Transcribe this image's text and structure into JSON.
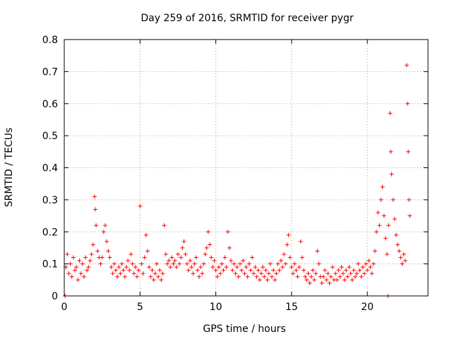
{
  "chart_data": {
    "type": "scatter",
    "title": "Day 259 of 2016, SRMTID for receiver pygr",
    "xlabel": "GPS time / hours",
    "ylabel": "SRMTID / TECUs",
    "xlim": [
      0,
      24
    ],
    "ylim": [
      0,
      0.8
    ],
    "xticks": [
      0,
      5,
      10,
      15,
      20
    ],
    "xtick_labels": [
      "0",
      "5",
      "10",
      "15",
      "20"
    ],
    "yticks": [
      0,
      0.1,
      0.2,
      0.3,
      0.4,
      0.5,
      0.6,
      0.7,
      0.8
    ],
    "ytick_labels": [
      "0",
      "0.1",
      "0.2",
      "0.3",
      "0.4",
      "0.5",
      "0.6",
      "0.7",
      "0.8"
    ],
    "grid": true,
    "marker": "+",
    "color": "#ff0000",
    "series": [
      {
        "name": "SRMTID",
        "points": [
          [
            0.05,
            0.0
          ],
          [
            0.1,
            0.09
          ],
          [
            0.2,
            0.13
          ],
          [
            0.3,
            0.07
          ],
          [
            0.4,
            0.1
          ],
          [
            0.5,
            0.06
          ],
          [
            0.6,
            0.12
          ],
          [
            0.7,
            0.08
          ],
          [
            0.8,
            0.09
          ],
          [
            0.9,
            0.05
          ],
          [
            1.0,
            0.11
          ],
          [
            1.1,
            0.07
          ],
          [
            1.2,
            0.1
          ],
          [
            1.3,
            0.06
          ],
          [
            1.4,
            0.12
          ],
          [
            1.5,
            0.08
          ],
          [
            1.6,
            0.09
          ],
          [
            1.7,
            0.11
          ],
          [
            1.8,
            0.13
          ],
          [
            1.9,
            0.16
          ],
          [
            2.0,
            0.31
          ],
          [
            2.05,
            0.27
          ],
          [
            2.1,
            0.22
          ],
          [
            2.2,
            0.14
          ],
          [
            2.3,
            0.12
          ],
          [
            2.4,
            0.1
          ],
          [
            2.5,
            0.12
          ],
          [
            2.6,
            0.2
          ],
          [
            2.7,
            0.22
          ],
          [
            2.8,
            0.17
          ],
          [
            2.9,
            0.14
          ],
          [
            3.0,
            0.12
          ],
          [
            3.1,
            0.09
          ],
          [
            3.2,
            0.07
          ],
          [
            3.3,
            0.1
          ],
          [
            3.4,
            0.08
          ],
          [
            3.5,
            0.06
          ],
          [
            3.6,
            0.09
          ],
          [
            3.7,
            0.07
          ],
          [
            3.8,
            0.1
          ],
          [
            3.9,
            0.08
          ],
          [
            4.0,
            0.06
          ],
          [
            4.1,
            0.09
          ],
          [
            4.2,
            0.11
          ],
          [
            4.3,
            0.08
          ],
          [
            4.4,
            0.13
          ],
          [
            4.5,
            0.1
          ],
          [
            4.6,
            0.07
          ],
          [
            4.7,
            0.09
          ],
          [
            4.8,
            0.06
          ],
          [
            4.9,
            0.08
          ],
          [
            5.0,
            0.28
          ],
          [
            5.1,
            0.1
          ],
          [
            5.2,
            0.07
          ],
          [
            5.3,
            0.12
          ],
          [
            5.4,
            0.19
          ],
          [
            5.5,
            0.14
          ],
          [
            5.6,
            0.09
          ],
          [
            5.7,
            0.06
          ],
          [
            5.8,
            0.08
          ],
          [
            5.9,
            0.05
          ],
          [
            6.0,
            0.07
          ],
          [
            6.1,
            0.1
          ],
          [
            6.2,
            0.06
          ],
          [
            6.3,
            0.08
          ],
          [
            6.4,
            0.05
          ],
          [
            6.5,
            0.07
          ],
          [
            6.6,
            0.22
          ],
          [
            6.7,
            0.13
          ],
          [
            6.8,
            0.1
          ],
          [
            6.9,
            0.11
          ],
          [
            7.0,
            0.09
          ],
          [
            7.1,
            0.12
          ],
          [
            7.2,
            0.1
          ],
          [
            7.3,
            0.11
          ],
          [
            7.4,
            0.09
          ],
          [
            7.5,
            0.13
          ],
          [
            7.6,
            0.1
          ],
          [
            7.7,
            0.12
          ],
          [
            7.8,
            0.15
          ],
          [
            7.9,
            0.17
          ],
          [
            8.0,
            0.13
          ],
          [
            8.1,
            0.1
          ],
          [
            8.2,
            0.08
          ],
          [
            8.3,
            0.11
          ],
          [
            8.4,
            0.09
          ],
          [
            8.5,
            0.07
          ],
          [
            8.6,
            0.1
          ],
          [
            8.7,
            0.12
          ],
          [
            8.8,
            0.08
          ],
          [
            8.9,
            0.06
          ],
          [
            9.0,
            0.09
          ],
          [
            9.1,
            0.07
          ],
          [
            9.2,
            0.1
          ],
          [
            9.3,
            0.13
          ],
          [
            9.4,
            0.15
          ],
          [
            9.5,
            0.2
          ],
          [
            9.6,
            0.16
          ],
          [
            9.7,
            0.12
          ],
          [
            9.8,
            0.09
          ],
          [
            9.9,
            0.11
          ],
          [
            10.0,
            0.08
          ],
          [
            10.1,
            0.06
          ],
          [
            10.2,
            0.09
          ],
          [
            10.3,
            0.07
          ],
          [
            10.4,
            0.1
          ],
          [
            10.5,
            0.08
          ],
          [
            10.6,
            0.12
          ],
          [
            10.7,
            0.09
          ],
          [
            10.8,
            0.2
          ],
          [
            10.9,
            0.15
          ],
          [
            11.0,
            0.11
          ],
          [
            11.1,
            0.08
          ],
          [
            11.2,
            0.1
          ],
          [
            11.3,
            0.07
          ],
          [
            11.4,
            0.09
          ],
          [
            11.5,
            0.06
          ],
          [
            11.6,
            0.1
          ],
          [
            11.7,
            0.08
          ],
          [
            11.8,
            0.11
          ],
          [
            11.9,
            0.07
          ],
          [
            12.0,
            0.09
          ],
          [
            12.1,
            0.06
          ],
          [
            12.2,
            0.1
          ],
          [
            12.3,
            0.08
          ],
          [
            12.4,
            0.12
          ],
          [
            12.5,
            0.07
          ],
          [
            12.6,
            0.09
          ],
          [
            12.7,
            0.06
          ],
          [
            12.8,
            0.08
          ],
          [
            12.9,
            0.05
          ],
          [
            13.0,
            0.07
          ],
          [
            13.1,
            0.09
          ],
          [
            13.2,
            0.06
          ],
          [
            13.3,
            0.08
          ],
          [
            13.4,
            0.05
          ],
          [
            13.5,
            0.07
          ],
          [
            13.6,
            0.1
          ],
          [
            13.7,
            0.06
          ],
          [
            13.8,
            0.08
          ],
          [
            13.9,
            0.05
          ],
          [
            14.0,
            0.07
          ],
          [
            14.1,
            0.1
          ],
          [
            14.2,
            0.08
          ],
          [
            14.3,
            0.11
          ],
          [
            14.4,
            0.09
          ],
          [
            14.5,
            0.13
          ],
          [
            14.6,
            0.1
          ],
          [
            14.7,
            0.16
          ],
          [
            14.8,
            0.19
          ],
          [
            14.9,
            0.12
          ],
          [
            15.0,
            0.09
          ],
          [
            15.1,
            0.07
          ],
          [
            15.2,
            0.1
          ],
          [
            15.3,
            0.08
          ],
          [
            15.4,
            0.06
          ],
          [
            15.5,
            0.09
          ],
          [
            15.6,
            0.17
          ],
          [
            15.7,
            0.12
          ],
          [
            15.8,
            0.08
          ],
          [
            15.9,
            0.06
          ],
          [
            16.0,
            0.05
          ],
          [
            16.1,
            0.07
          ],
          [
            16.2,
            0.04
          ],
          [
            16.3,
            0.06
          ],
          [
            16.4,
            0.08
          ],
          [
            16.5,
            0.05
          ],
          [
            16.6,
            0.07
          ],
          [
            16.7,
            0.14
          ],
          [
            16.8,
            0.1
          ],
          [
            16.9,
            0.06
          ],
          [
            17.0,
            0.04
          ],
          [
            17.1,
            0.06
          ],
          [
            17.2,
            0.08
          ],
          [
            17.3,
            0.05
          ],
          [
            17.4,
            0.07
          ],
          [
            17.5,
            0.04
          ],
          [
            17.6,
            0.06
          ],
          [
            17.7,
            0.09
          ],
          [
            17.8,
            0.05
          ],
          [
            17.9,
            0.07
          ],
          [
            18.0,
            0.05
          ],
          [
            18.1,
            0.08
          ],
          [
            18.2,
            0.06
          ],
          [
            18.3,
            0.09
          ],
          [
            18.4,
            0.07
          ],
          [
            18.5,
            0.05
          ],
          [
            18.6,
            0.08
          ],
          [
            18.7,
            0.06
          ],
          [
            18.8,
            0.09
          ],
          [
            18.9,
            0.07
          ],
          [
            19.0,
            0.05
          ],
          [
            19.1,
            0.08
          ],
          [
            19.2,
            0.06
          ],
          [
            19.3,
            0.07
          ],
          [
            19.4,
            0.1
          ],
          [
            19.5,
            0.08
          ],
          [
            19.6,
            0.06
          ],
          [
            19.7,
            0.09
          ],
          [
            19.8,
            0.07
          ],
          [
            19.9,
            0.1
          ],
          [
            20.0,
            0.08
          ],
          [
            20.1,
            0.11
          ],
          [
            20.2,
            0.09
          ],
          [
            20.3,
            0.07
          ],
          [
            20.4,
            0.1
          ],
          [
            20.5,
            0.14
          ],
          [
            20.6,
            0.2
          ],
          [
            20.7,
            0.26
          ],
          [
            20.8,
            0.22
          ],
          [
            20.9,
            0.3
          ],
          [
            21.0,
            0.34
          ],
          [
            21.1,
            0.25
          ],
          [
            21.2,
            0.18
          ],
          [
            21.3,
            0.13
          ],
          [
            21.35,
            0.0
          ],
          [
            21.4,
            0.22
          ],
          [
            21.5,
            0.57
          ],
          [
            21.55,
            0.45
          ],
          [
            21.6,
            0.38
          ],
          [
            21.7,
            0.3
          ],
          [
            21.8,
            0.24
          ],
          [
            21.9,
            0.19
          ],
          [
            22.0,
            0.16
          ],
          [
            22.1,
            0.14
          ],
          [
            22.2,
            0.12
          ],
          [
            22.3,
            0.1
          ],
          [
            22.4,
            0.13
          ],
          [
            22.5,
            0.11
          ],
          [
            22.6,
            0.72
          ],
          [
            22.65,
            0.6
          ],
          [
            22.7,
            0.45
          ],
          [
            22.75,
            0.3
          ],
          [
            22.8,
            0.25
          ]
        ]
      }
    ]
  }
}
